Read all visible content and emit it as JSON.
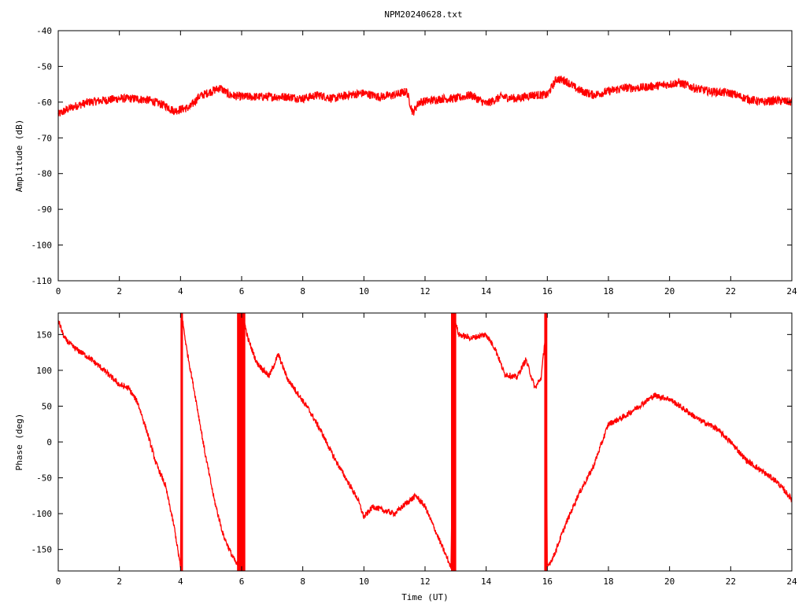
{
  "title": "NPM20240628.txt",
  "colors": {
    "series": "#ff0000",
    "axis": "#000000",
    "background": "#ffffff"
  },
  "chart_data": [
    {
      "type": "line",
      "panel": "top",
      "title": "NPM20240628.txt",
      "xlabel": "",
      "ylabel": "Amplitude (dB)",
      "xlim": [
        0,
        24
      ],
      "ylim": [
        -110,
        -40
      ],
      "xticks": [
        0,
        2,
        4,
        6,
        8,
        10,
        12,
        14,
        16,
        18,
        20,
        22,
        24
      ],
      "yticks": [
        -40,
        -50,
        -60,
        -70,
        -80,
        -90,
        -100,
        -110
      ],
      "ytick_labels": [
        "-40",
        "-50",
        "-60",
        "-70",
        "-80",
        "-90",
        "-100",
        "-110"
      ],
      "grid": false,
      "series": [
        {
          "x": [
            0,
            0.3,
            0.6,
            1.0,
            1.5,
            2.0,
            2.5,
            3.0,
            3.5,
            3.8,
            4.0,
            4.3,
            4.6,
            5.0,
            5.3,
            5.6,
            6.0,
            6.5,
            7.0,
            7.5,
            8.0,
            8.5,
            9.0,
            9.5,
            10.0,
            10.5,
            11.0,
            11.4,
            11.6,
            11.8,
            12.2,
            12.6,
            13.0,
            13.5,
            14.0,
            14.5,
            15.0,
            15.5,
            16.0,
            16.3,
            16.6,
            17.0,
            17.5,
            18.0,
            18.5,
            19.0,
            19.5,
            20.0,
            20.3,
            20.8,
            21.3,
            22.0,
            22.5,
            23.0,
            23.5,
            24.0
          ],
          "y": [
            -63.5,
            -62.0,
            -61.0,
            -60.0,
            -59.5,
            -59.0,
            -59.0,
            -59.5,
            -61.0,
            -62.5,
            -62.0,
            -61.5,
            -58.5,
            -57.0,
            -56.0,
            -58.0,
            -58.5,
            -58.5,
            -58.5,
            -58.5,
            -59.0,
            -58.0,
            -59.0,
            -58.0,
            -57.5,
            -58.5,
            -58.0,
            -57.0,
            -63.0,
            -60.0,
            -59.5,
            -59.0,
            -59.0,
            -58.0,
            -60.5,
            -58.5,
            -59.0,
            -58.0,
            -58.0,
            -53.5,
            -54.0,
            -56.5,
            -58.0,
            -57.0,
            -56.0,
            -56.0,
            -55.5,
            -55.0,
            -54.5,
            -56.0,
            -57.0,
            -57.5,
            -59.0,
            -60.0,
            -59.5,
            -60.0
          ],
          "noise": 1.2
        }
      ]
    },
    {
      "type": "line",
      "panel": "bottom",
      "xlabel": "Time (UT)",
      "ylabel": "Phase (deg)",
      "xlim": [
        0,
        24
      ],
      "ylim": [
        -180,
        180
      ],
      "xticks": [
        0,
        2,
        4,
        6,
        8,
        10,
        12,
        14,
        16,
        18,
        20,
        22,
        24
      ],
      "yticks": [
        150,
        100,
        50,
        0,
        -50,
        -100,
        -150
      ],
      "ytick_labels": [
        "150",
        "100",
        "50",
        "0",
        "-50",
        "-100",
        "-150"
      ],
      "grid": false,
      "wraps": [
        [
          4.0,
          4.08
        ],
        [
          5.85,
          6.12
        ],
        [
          12.85,
          13.02
        ],
        [
          15.9,
          16.0
        ]
      ],
      "series": [
        {
          "x": [
            0,
            0.2,
            0.5,
            1.0,
            1.5,
            2.0,
            2.3,
            2.6,
            2.9,
            3.2,
            3.5,
            3.8,
            4.0,
            4.05,
            4.2,
            4.5,
            4.8,
            5.1,
            5.4,
            5.7,
            5.9,
            6.05,
            6.2,
            6.5,
            6.9,
            7.2,
            7.5,
            7.8,
            8.2,
            8.6,
            9.0,
            9.4,
            9.8,
            10.0,
            10.3,
            10.6,
            11.0,
            11.4,
            11.7,
            12.0,
            12.3,
            12.6,
            12.85,
            12.95,
            13.1,
            13.5,
            14.0,
            14.3,
            14.6,
            15.0,
            15.3,
            15.6,
            15.8,
            15.95,
            16.0,
            16.2,
            16.6,
            17.0,
            17.5,
            18.0,
            18.5,
            19.0,
            19.5,
            20.0,
            20.5,
            21.0,
            21.5,
            22.0,
            22.5,
            23.0,
            23.5,
            24.0
          ],
          "y": [
            170,
            145,
            132,
            118,
            100,
            80,
            75,
            55,
            15,
            -30,
            -60,
            -120,
            -175,
            175,
            130,
            60,
            -15,
            -80,
            -130,
            -160,
            -175,
            175,
            145,
            110,
            92,
            122,
            88,
            70,
            45,
            15,
            -20,
            -50,
            -80,
            -105,
            -90,
            -95,
            -100,
            -85,
            -75,
            -90,
            -120,
            -150,
            -175,
            175,
            150,
            145,
            150,
            130,
            95,
            90,
            115,
            75,
            90,
            155,
            -175,
            -160,
            -115,
            -75,
            -35,
            25,
            35,
            50,
            65,
            60,
            45,
            30,
            20,
            0,
            -25,
            -40,
            -55,
            -80
          ],
          "noise": 4
        }
      ]
    }
  ]
}
